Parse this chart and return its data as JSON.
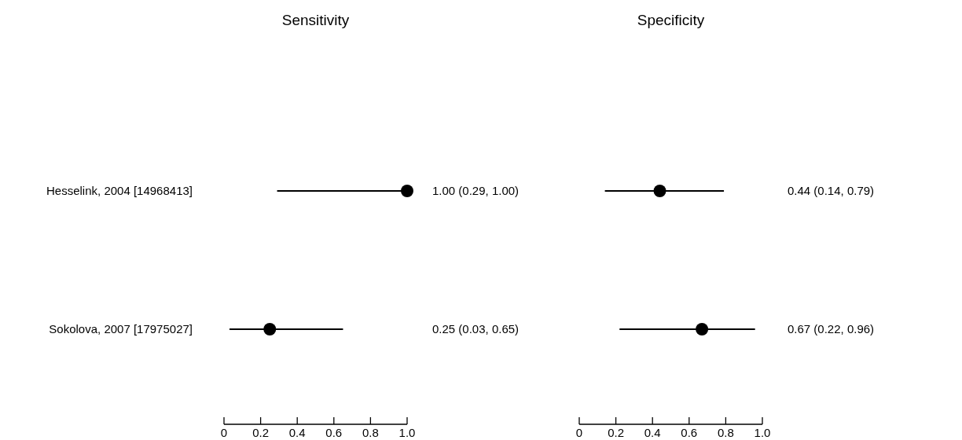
{
  "chart_data": [
    {
      "type": "scatter",
      "orientation": "horizontal",
      "title": "Sensitivity",
      "categories": [
        "Hesselink, 2004 [14968413]",
        "Sokolova, 2007 [17975027]"
      ],
      "values": [
        1.0,
        0.25
      ],
      "errors": [
        [
          0.29,
          1.0
        ],
        [
          0.03,
          0.65
        ]
      ],
      "value_labels": [
        "1.00 (0.29, 1.00)",
        "0.25 (0.03, 0.65)"
      ],
      "color": "#000000",
      "marker": "circle",
      "xlim": [
        0,
        1
      ],
      "xticks": [
        0,
        0.2,
        0.4,
        0.6,
        0.8,
        {
          "value": 1,
          "label": "1.0"
        }
      ]
    },
    {
      "type": "scatter",
      "orientation": "horizontal",
      "title": "Specificity",
      "categories": [
        null,
        null
      ],
      "values": [
        0.44,
        0.67
      ],
      "errors": [
        [
          0.14,
          0.79
        ],
        [
          0.22,
          0.96
        ]
      ],
      "value_labels": [
        "0.44 (0.14, 0.79)",
        "0.67 (0.22, 0.96)"
      ],
      "color": "#000000",
      "marker": "circle",
      "xlim": [
        0,
        1
      ],
      "xticks": [
        0,
        0.2,
        0.4,
        0.6,
        0.8,
        {
          "value": 1,
          "label": "1.0"
        }
      ]
    }
  ]
}
